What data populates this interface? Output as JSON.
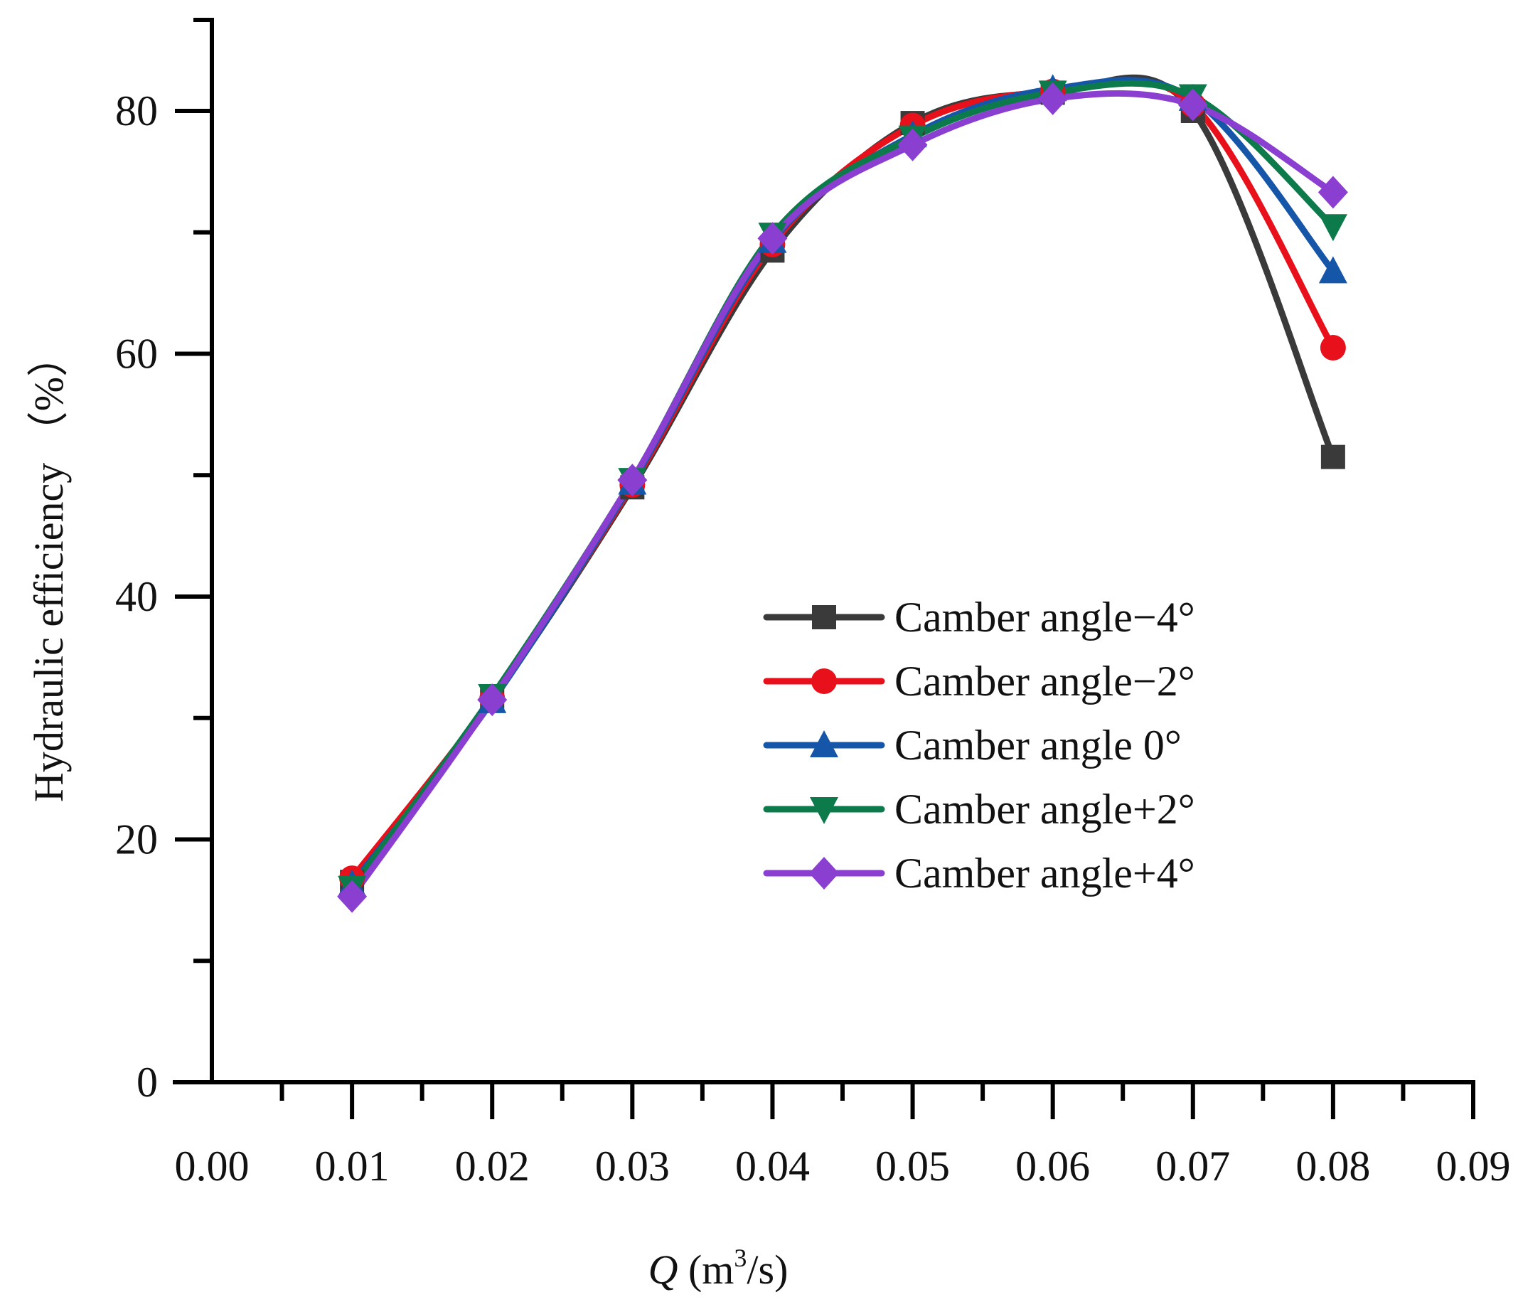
{
  "chart_data": {
    "type": "line",
    "title": "",
    "xlabel": {
      "var": "Q",
      "unit_pre": " (m",
      "unit_sup": "3",
      "unit_post": "/s)"
    },
    "ylabel": "Hydraulic efficiency （%）",
    "xlim": [
      0.0,
      0.09
    ],
    "ylim": [
      0,
      90
    ],
    "x_ticks": [
      "0.00",
      "0.01",
      "0.02",
      "0.03",
      "0.04",
      "0.05",
      "0.06",
      "0.07",
      "0.08",
      "0.09"
    ],
    "y_ticks": [
      "0",
      "20",
      "40",
      "60",
      "80"
    ],
    "x": [
      0.01,
      0.02,
      0.03,
      0.04,
      0.05,
      0.06,
      0.07,
      0.08
    ],
    "legend_position": "center-right",
    "series": [
      {
        "name": "Camber angle−4°",
        "color": "#3a3a3a",
        "marker": "square",
        "values": [
          16.5,
          31.5,
          49.0,
          68.5,
          79.0,
          81.5,
          80.0,
          51.5
        ]
      },
      {
        "name": "Camber angle−2°",
        "color": "#e8101a",
        "marker": "circle",
        "values": [
          16.8,
          31.6,
          49.2,
          69.0,
          78.8,
          81.6,
          80.5,
          60.5
        ]
      },
      {
        "name": "Camber angle 0°",
        "color": "#1656a8",
        "marker": "triangle-up",
        "values": [
          16.3,
          31.4,
          49.4,
          69.3,
          78.0,
          81.8,
          81.0,
          66.8
        ]
      },
      {
        "name": "Camber angle+2°",
        "color": "#0c7a4a",
        "marker": "triangle-down",
        "values": [
          16.0,
          31.8,
          49.6,
          69.8,
          77.8,
          81.5,
          81.2,
          70.5
        ]
      },
      {
        "name": "Camber angle+4°",
        "color": "#8b3fd0",
        "marker": "diamond",
        "values": [
          15.3,
          31.5,
          49.6,
          69.5,
          77.2,
          81.0,
          80.5,
          73.3
        ]
      }
    ]
  }
}
